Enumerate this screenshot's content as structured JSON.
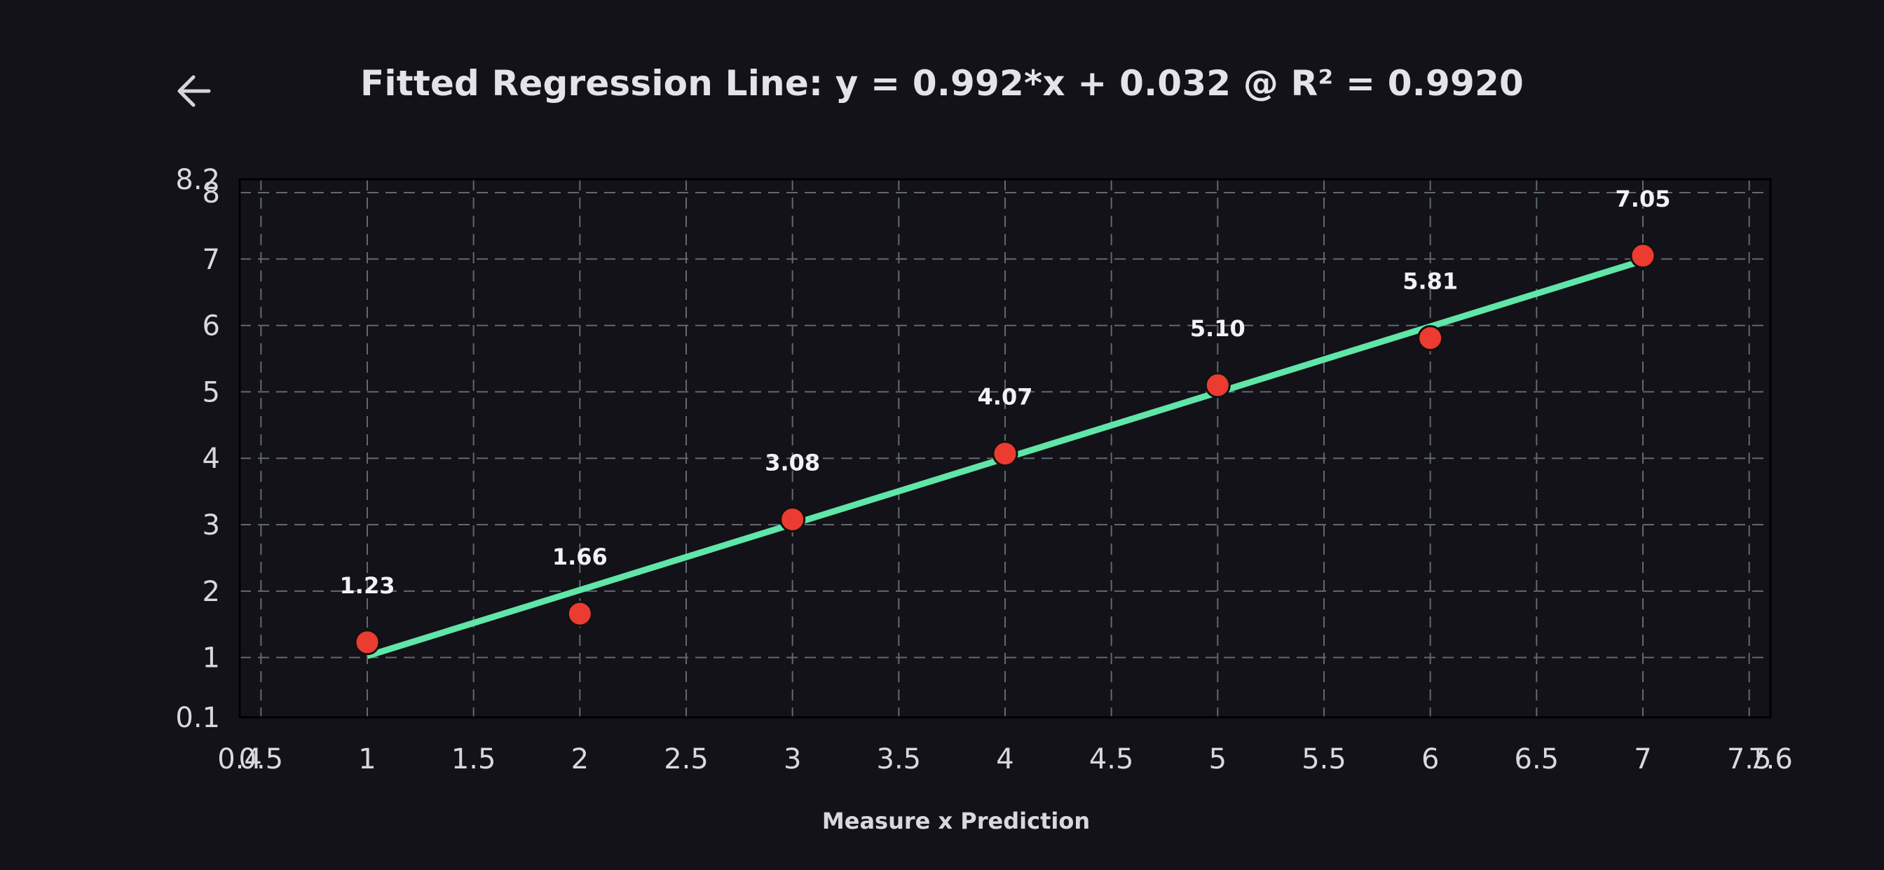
{
  "header": {
    "back_icon": "arrow-left-icon",
    "title": "Fitted Regression Line: y = 0.992*x + 0.032 @ R² = 0.9920"
  },
  "colors": {
    "background": "#131218",
    "grid": "#5f6a70",
    "fit_line": "#5fe6a8",
    "points": "#ec3b30",
    "text": "#e4e3e8"
  },
  "chart_data": {
    "type": "scatter",
    "title": "Fitted Regression Line: y = 0.992*x + 0.032 @ R² = 0.9920",
    "xlabel": "Measure x Prediction",
    "ylabel": "",
    "xlim": [
      0.4,
      7.6
    ],
    "ylim": [
      0.1,
      8.2
    ],
    "grid": true,
    "x_ticks": [
      "0.4",
      "0.5",
      "1",
      "1.5",
      "2",
      "2.5",
      "3",
      "3.5",
      "4",
      "4.5",
      "5",
      "5.5",
      "6",
      "6.5",
      "7",
      "7.5",
      "7.6"
    ],
    "y_ticks": [
      "0.1",
      "1",
      "2",
      "3",
      "4",
      "5",
      "6",
      "7",
      "8",
      "8.2"
    ],
    "series": [
      {
        "type": "scatter",
        "x": [
          1,
          2,
          3,
          4,
          5,
          6,
          7
        ],
        "y": [
          1.23,
          1.66,
          3.08,
          4.07,
          5.1,
          5.81,
          7.05
        ],
        "labels": [
          "1.23",
          "1.66",
          "3.08",
          "4.07",
          "5.10",
          "5.81",
          "7.05"
        ]
      },
      {
        "type": "line",
        "x": [
          1,
          7
        ],
        "y": [
          1.024,
          6.976
        ]
      }
    ]
  }
}
